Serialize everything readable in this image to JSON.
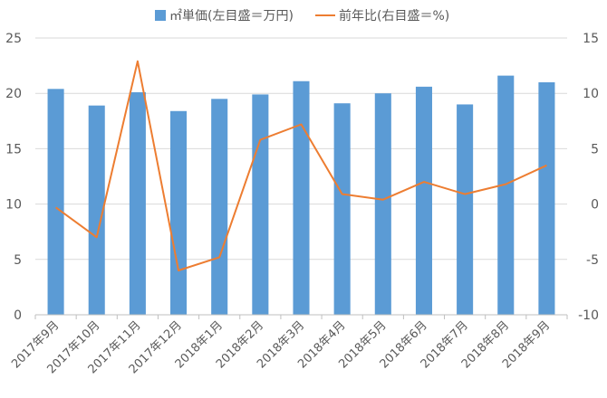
{
  "chart_data": {
    "type": "bar",
    "categories": [
      "2017年9月",
      "2017年10月",
      "2017年11月",
      "2017年12月",
      "2018年1月",
      "2018年2月",
      "2018年3月",
      "2018年4月",
      "2018年5月",
      "2018年6月",
      "2018年7月",
      "2018年8月",
      "2018年9月"
    ],
    "series": [
      {
        "name": "㎡単価(左目盛＝万円)",
        "type": "bar",
        "axis": "left",
        "color": "#5b9bd5",
        "values": [
          20.4,
          18.9,
          20.1,
          18.4,
          19.5,
          19.9,
          21.1,
          19.1,
          20.0,
          20.6,
          19.0,
          21.6,
          21.0
        ]
      },
      {
        "name": "前年比(右目盛＝%)",
        "type": "line",
        "axis": "right",
        "color": "#ed7d31",
        "values": [
          -0.3,
          -3.0,
          12.9,
          -6.0,
          -4.8,
          5.8,
          7.2,
          0.9,
          0.4,
          2.0,
          0.9,
          1.8,
          3.5
        ]
      }
    ],
    "y_left": {
      "min": 0,
      "max": 25,
      "ticks": [
        0,
        5,
        10,
        15,
        20,
        25
      ]
    },
    "y_right": {
      "min": -10,
      "max": 15,
      "ticks": [
        -10,
        -5,
        0,
        5,
        10,
        15
      ]
    },
    "grid": true,
    "legend_position": "top"
  }
}
